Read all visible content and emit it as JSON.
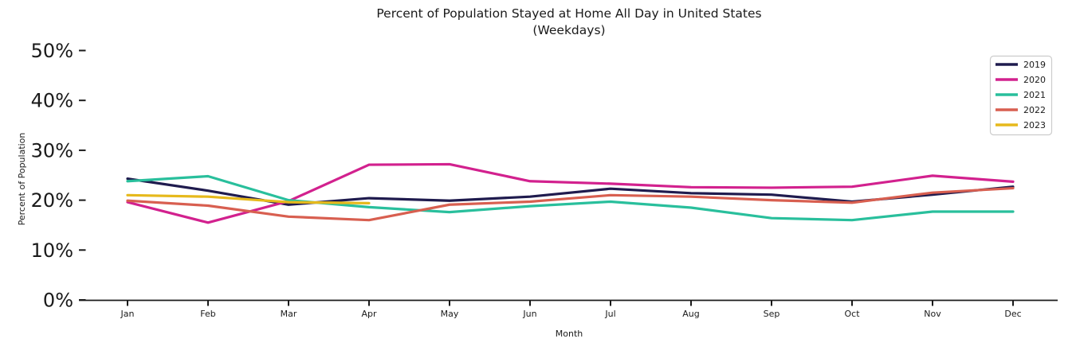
{
  "chart_data": {
    "type": "line",
    "title": "Percent of Population Stayed at Home All Day in United States",
    "subtitle": "(Weekdays)",
    "xlabel": "Month",
    "ylabel": "Percent of Population",
    "categories": [
      "Jan",
      "Feb",
      "Mar",
      "Apr",
      "May",
      "Jun",
      "Jul",
      "Aug",
      "Sep",
      "Oct",
      "Nov",
      "Dec"
    ],
    "yticks": [
      {
        "label": "0%",
        "value": 0
      },
      {
        "label": "10%",
        "value": 10
      },
      {
        "label": "20%",
        "value": 20
      },
      {
        "label": "30%",
        "value": 30
      },
      {
        "label": "40%",
        "value": 40
      },
      {
        "label": "50%",
        "value": 50
      }
    ],
    "ylim": [
      0,
      52
    ],
    "grid": false,
    "legend_position": "upper right",
    "series": [
      {
        "name": "2019",
        "color": "#1f1b4e",
        "values": [
          24.3,
          21.9,
          19.1,
          20.4,
          19.9,
          20.7,
          22.3,
          21.4,
          21.1,
          19.7,
          21.1,
          22.7
        ]
      },
      {
        "name": "2020",
        "color": "#d2218e",
        "values": [
          19.6,
          15.5,
          19.8,
          27.1,
          27.2,
          23.8,
          23.3,
          22.6,
          22.5,
          22.7,
          24.9,
          23.7
        ]
      },
      {
        "name": "2021",
        "color": "#29bf9c",
        "values": [
          23.8,
          24.8,
          20.0,
          18.6,
          17.6,
          18.8,
          19.7,
          18.5,
          16.4,
          16.0,
          17.7,
          17.7
        ]
      },
      {
        "name": "2022",
        "color": "#d85f50",
        "values": [
          19.9,
          18.9,
          16.7,
          16.0,
          19.1,
          19.7,
          21.0,
          20.7,
          20.0,
          19.5,
          21.5,
          22.4
        ]
      },
      {
        "name": "2023",
        "color": "#e6b91c",
        "values": [
          21.0,
          20.7,
          19.6,
          19.4
        ]
      }
    ]
  }
}
